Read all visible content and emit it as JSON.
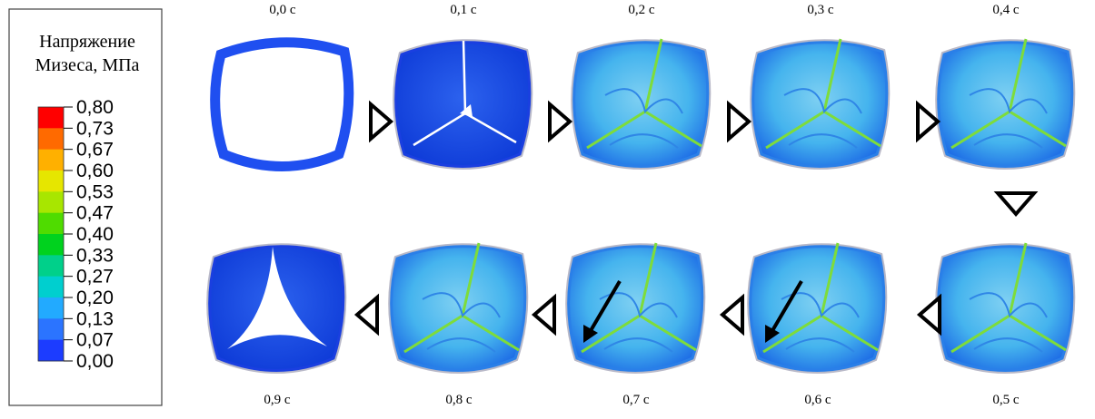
{
  "legend": {
    "title": [
      "Напряжение",
      "Мизеса, МПа"
    ],
    "ticks": [
      "0,80",
      "0,73",
      "0,67",
      "0,60",
      "0,53",
      "0,47",
      "0,40",
      "0,33",
      "0,27",
      "0,20",
      "0,13",
      "0,07",
      "0,00"
    ]
  },
  "frames": [
    "0,0 с",
    "0,1 с",
    "0,2 с",
    "0,3 с",
    "0,4 с",
    "0,5 с",
    "0,6 с",
    "0,7 с",
    "0,8 с",
    "0,9 с"
  ]
}
